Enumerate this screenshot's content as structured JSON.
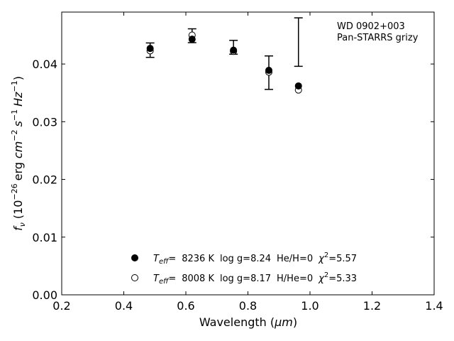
{
  "chart_data": {
    "type": "scatter",
    "annotation": [
      "WD 0902+003",
      "Pan-STARRS grizy"
    ],
    "xlim": [
      0.2,
      1.4
    ],
    "ylim": [
      0.0,
      0.049
    ],
    "xticks": [
      0.2,
      0.4,
      0.6,
      0.8,
      1.0,
      1.2,
      1.4
    ],
    "xtick_labels": [
      "0.2",
      "0.4",
      "0.6",
      "0.8",
      "1.0",
      "1.2",
      "1.4"
    ],
    "yticks": [
      0.0,
      0.01,
      0.02,
      0.03,
      0.04
    ],
    "ytick_labels": [
      "0.00",
      "0.01",
      "0.02",
      "0.03",
      "0.04"
    ],
    "grid": false,
    "legend_position": "lower-center",
    "observed": {
      "x": [
        0.4849,
        0.6201,
        0.7535,
        0.8674,
        0.9628
      ],
      "y": [
        0.0424,
        0.0449,
        0.0429,
        0.0385,
        0.0438
      ],
      "yerr": [
        0.00125,
        0.0012,
        0.0012,
        0.0029,
        0.0042
      ]
    },
    "series": [
      {
        "name": "Teff= 8236 K log g=8.24 He/H=0 χ²=5.57",
        "marker": "filled-circle",
        "x": [
          0.4849,
          0.6201,
          0.7535,
          0.8674,
          0.9628
        ],
        "y": [
          0.0427,
          0.0443,
          0.0424,
          0.0389,
          0.0362
        ]
      },
      {
        "name": "Teff= 8008 K log g=8.17 H/He=0 χ²=5.33",
        "marker": "open-circle",
        "x": [
          0.4849,
          0.6201,
          0.7535,
          0.8674,
          0.9628
        ],
        "y": [
          0.0423,
          0.045,
          0.0422,
          0.0386,
          0.0355
        ]
      }
    ],
    "legend": [
      {
        "marker": "filled-circle",
        "teff": "8236 K",
        "logg": "log g=8.24",
        "comp": "He/H=0",
        "chi2": "=5.57"
      },
      {
        "marker": "open-circle",
        "teff": "8008 K",
        "logg": "log g=8.17",
        "comp": "H/He=0",
        "chi2": "=5.33"
      }
    ],
    "legend_labels": {
      "teff_sym": "T",
      "teff_sub": "eff",
      "eq": "=",
      "chi_sym": "χ",
      "chi_sup": "2"
    },
    "xlabel": {
      "pre": "Wavelength (",
      "unit": "μm",
      "post": ")"
    },
    "ylabel": {
      "f": "f",
      "nu": "ν",
      "open": "(10",
      "exp": "−26",
      "erg": "erg",
      "cm": "cm",
      "cm_exp": "−2",
      "s": "s",
      "s_exp": "−1",
      "hz": "Hz",
      "hz_exp": "−1",
      "close": ")"
    }
  }
}
